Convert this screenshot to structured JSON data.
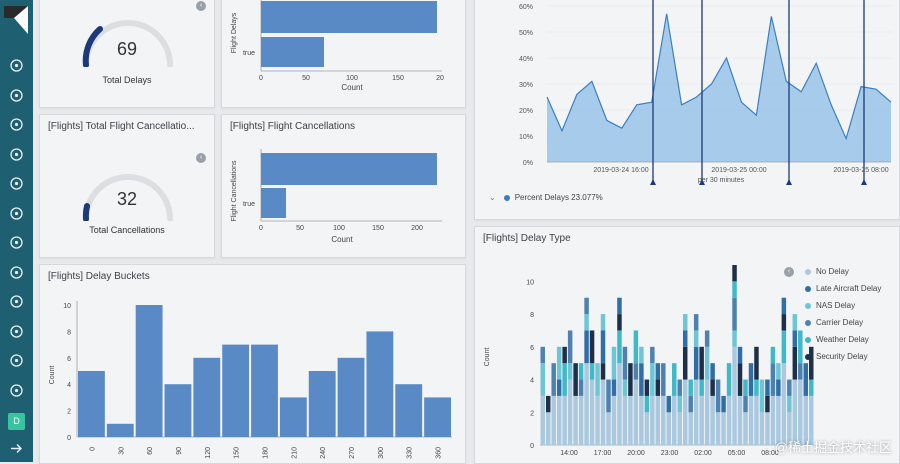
{
  "sidebar": {
    "logo": "K",
    "icons": [
      "compass-icon",
      "visualize-icon",
      "dashboard-icon",
      "canvas-icon",
      "maps-icon",
      "ml-icon",
      "infrastructure-icon",
      "logs-icon",
      "apm-icon",
      "uptime-icon",
      "dev-tools-icon",
      "monitoring-icon",
      "settings-icon"
    ],
    "user_initial": "D"
  },
  "total_delays": {
    "value": "69",
    "label": "Total Delays"
  },
  "flight_delays": {
    "ylabel": "Flight Delays",
    "cat": "true",
    "ticks": [
      "0",
      "50",
      "100",
      "150",
      "20"
    ],
    "xlabel": "Count"
  },
  "total_cancellations": {
    "title": "[Flights] Total Flight Cancellatio...",
    "value": "32",
    "label": "Total Cancellations"
  },
  "flight_cancellations": {
    "title": "[Flights] Flight Cancellations",
    "ylabel": "Flight Cancellations",
    "cat": "true",
    "ticks": [
      "0",
      "50",
      "100",
      "150",
      "200"
    ],
    "xlabel": "Count"
  },
  "delay_buckets": {
    "title": "[Flights] Delay Buckets",
    "ylabel": "Count"
  },
  "percent_delays": {
    "legend": "Percent Delays 23.077%",
    "xlabel": "per 30 minutes",
    "dates": [
      "2019-03-24 16:00",
      "2019-03-25 00:00",
      "2019-03-25 08:00"
    ]
  },
  "delay_type": {
    "title": "[Flights] Delay Type",
    "ylabel": "Count",
    "legend": [
      {
        "label": "No Delay",
        "color": "#aac8de"
      },
      {
        "label": "Late Aircraft Delay",
        "color": "#2f6fa5"
      },
      {
        "label": "NAS Delay",
        "color": "#6ec5d6"
      },
      {
        "label": "Carrier Delay",
        "color": "#4d82b0"
      },
      {
        "label": "Weather Delay",
        "color": "#3fb9c8"
      },
      {
        "label": "Security Delay",
        "color": "#1e2f48"
      }
    ]
  },
  "watermark": "@稀土掘金技术社区",
  "chart_data": [
    {
      "type": "bar",
      "title": "[Flights] Delay Buckets",
      "categories": [
        "0",
        "30",
        "60",
        "90",
        "120",
        "150",
        "180",
        "210",
        "240",
        "270",
        "300",
        "330",
        "360"
      ],
      "values": [
        5,
        1,
        10,
        4,
        6,
        7,
        7,
        3,
        5,
        6,
        8,
        4,
        3
      ],
      "xlabel": "",
      "ylabel": "Count",
      "ylim": [
        0,
        10
      ],
      "yticks": [
        "0",
        "2",
        "4",
        "6",
        "8",
        "10"
      ]
    },
    {
      "type": "bar",
      "title": "Flight Delays",
      "categories": [
        "true"
      ],
      "values": [
        69
      ],
      "xlabel": "Count",
      "ylabel": "Flight Delays"
    },
    {
      "type": "bar",
      "title": "[Flights] Flight Cancellations",
      "categories": [
        "true"
      ],
      "values": [
        32
      ],
      "xlabel": "Count",
      "ylabel": "Flight Cancellations"
    },
    {
      "type": "area",
      "title": "Percent Delays",
      "values": [
        25,
        12,
        26,
        31,
        16,
        13,
        22,
        23,
        57,
        22,
        25,
        30,
        40,
        23,
        18,
        56,
        31,
        27,
        38,
        22,
        9,
        29,
        28,
        23
      ],
      "ylim": [
        0,
        60
      ],
      "yticks": [
        "0%",
        "10%",
        "20%",
        "30%",
        "40%",
        "50%",
        "60%"
      ],
      "xlabel": "per 30 minutes",
      "legend": "Percent Delays 23.077%"
    },
    {
      "type": "bar",
      "title": "[Flights] Delay Type",
      "stacked": true,
      "ylim": [
        0,
        11
      ],
      "yticks": [
        "0",
        "2",
        "4",
        "6",
        "8",
        "10"
      ],
      "xticks": [
        "14:00",
        "17:00",
        "20:00",
        "23:00",
        "02:00",
        "05:00",
        "08:00"
      ],
      "ylabel": "Count",
      "totals": [
        6,
        3,
        5,
        6,
        6,
        7,
        5,
        5,
        9,
        7,
        5,
        8,
        4,
        6,
        9,
        6,
        5,
        7,
        6,
        4,
        6,
        5,
        5,
        3,
        5,
        4,
        8,
        4,
        8,
        6,
        7,
        5,
        4,
        3,
        5,
        11,
        6,
        4,
        5,
        6,
        4,
        4,
        6,
        5,
        9,
        4,
        8,
        7,
        5,
        6
      ]
    }
  ]
}
